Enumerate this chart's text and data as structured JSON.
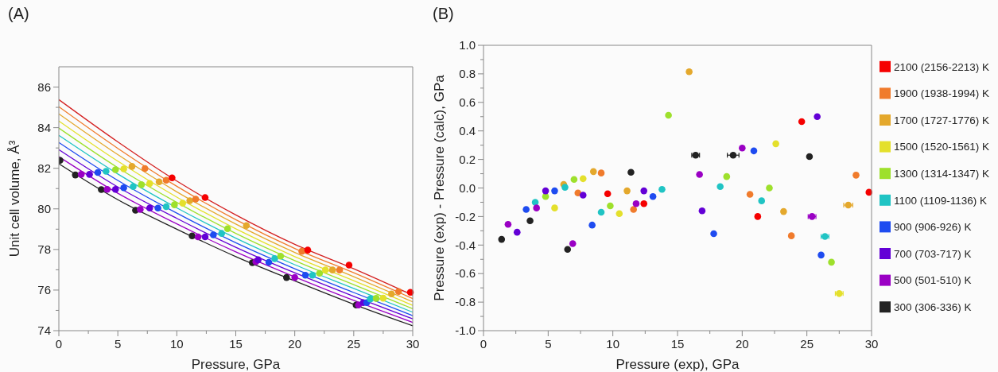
{
  "chart_data": [
    {
      "type": "scatter",
      "title": "(A)",
      "xlabel": "Pressure, GPa",
      "ylabel": "Unit cell volume, Å³",
      "marker": "circle",
      "xlim": [
        0,
        30
      ],
      "ylim": [
        74,
        87
      ],
      "xticks": [
        0,
        {
          "value": 2.5,
          "label": null
        },
        5,
        {
          "value": 7.5,
          "label": null
        },
        10,
        {
          "value": 12.5,
          "label": null
        },
        15,
        {
          "value": 17.5,
          "label": null
        },
        20,
        {
          "value": 22.5,
          "label": null
        },
        25,
        {
          "value": 27.5,
          "label": null
        },
        30
      ],
      "yticks": [
        74,
        {
          "value": 75,
          "label": null
        },
        76,
        {
          "value": 77,
          "label": null
        },
        78,
        {
          "value": 79,
          "label": null
        },
        80,
        {
          "value": 81,
          "label": null
        },
        82,
        {
          "value": 83,
          "label": null
        },
        84,
        {
          "value": 85,
          "label": null
        },
        86
      ],
      "series": [
        {
          "type": "line",
          "marker": "none",
          "color": "#222222",
          "x": [
            0,
            5,
            10,
            15,
            20,
            25,
            30
          ],
          "values": [
            82.22,
            80.45,
            79.0,
            77.65,
            76.45,
            75.3,
            74.24
          ]
        },
        {
          "type": "line",
          "marker": "none",
          "color": "#9a00c4",
          "x": [
            0,
            5,
            10,
            15,
            20,
            25,
            30
          ],
          "values": [
            82.57,
            80.77,
            79.26,
            77.88,
            76.65,
            75.49,
            74.41
          ]
        },
        {
          "type": "line",
          "marker": "none",
          "color": "#6300d6",
          "x": [
            0,
            5,
            10,
            15,
            20,
            25,
            30
          ],
          "values": [
            82.92,
            81.08,
            79.53,
            78.11,
            76.85,
            75.69,
            74.58
          ]
        },
        {
          "type": "line",
          "marker": "none",
          "color": "#1e4bf0",
          "x": [
            0,
            5,
            10,
            15,
            20,
            25,
            30
          ],
          "values": [
            83.27,
            81.4,
            79.79,
            78.33,
            77.05,
            75.88,
            74.74
          ]
        },
        {
          "type": "line",
          "marker": "none",
          "color": "#20c4c4",
          "x": [
            0,
            5,
            10,
            15,
            20,
            25,
            30
          ],
          "values": [
            83.62,
            81.72,
            80.05,
            78.56,
            77.25,
            76.08,
            74.91
          ]
        },
        {
          "type": "line",
          "marker": "none",
          "color": "#9ee02c",
          "x": [
            0,
            5,
            10,
            15,
            20,
            25,
            30
          ],
          "values": [
            83.98,
            82.03,
            80.32,
            78.79,
            77.45,
            76.27,
            75.08
          ]
        },
        {
          "type": "line",
          "marker": "none",
          "color": "#e4e02c",
          "x": [
            0,
            5,
            10,
            15,
            20,
            25,
            30
          ],
          "values": [
            84.33,
            82.35,
            80.58,
            79.02,
            77.65,
            76.46,
            75.25
          ]
        },
        {
          "type": "line",
          "marker": "none",
          "color": "#e4a82c",
          "x": [
            0,
            5,
            10,
            15,
            20,
            25,
            30
          ],
          "values": [
            84.68,
            82.67,
            80.84,
            79.25,
            77.85,
            76.66,
            75.42
          ]
        },
        {
          "type": "line",
          "marker": "none",
          "color": "#f07b2c",
          "x": [
            0,
            5,
            10,
            15,
            20,
            25,
            30
          ],
          "values": [
            85.03,
            82.98,
            81.11,
            79.47,
            78.05,
            76.85,
            75.58
          ]
        },
        {
          "type": "line",
          "marker": "none",
          "color": "#d42020",
          "x": [
            0,
            5,
            10,
            15,
            20,
            25,
            30
          ],
          "values": [
            85.38,
            83.3,
            81.37,
            79.7,
            78.25,
            77.05,
            75.75
          ]
        },
        {
          "color": "#222222",
          "x": [
            0.1,
            1.4,
            3.6,
            6.5,
            11.3,
            16.4,
            19.3,
            25.2
          ],
          "values": [
            82.39,
            81.67,
            80.95,
            79.93,
            78.67,
            77.35,
            76.62,
            75.26
          ]
        },
        {
          "color": "#9a00c4",
          "x": [
            1.9,
            4.1,
            6.9,
            11.8,
            16.7,
            20.0,
            25.4
          ],
          "values": [
            81.7,
            80.96,
            79.97,
            78.62,
            77.4,
            76.62,
            75.26
          ]
        },
        {
          "color": "#6300d6",
          "x": [
            2.6,
            4.8,
            7.7,
            12.4,
            16.9,
            25.8
          ],
          "values": [
            81.7,
            80.96,
            80.04,
            78.62,
            77.49,
            75.38
          ]
        },
        {
          "color": "#1e4bf0",
          "x": [
            3.3,
            5.5,
            8.4,
            13.1,
            17.8,
            20.9,
            26.1
          ],
          "values": [
            81.79,
            81.04,
            80.04,
            78.72,
            77.37,
            76.73,
            75.38
          ]
        },
        {
          "color": "#20c4c4",
          "x": [
            4.0,
            6.3,
            9.1,
            13.8,
            18.3,
            21.5,
            26.4
          ],
          "values": [
            81.85,
            81.1,
            80.11,
            78.79,
            77.55,
            76.73,
            75.56
          ]
        },
        {
          "color": "#9ee02c",
          "x": [
            4.8,
            7.0,
            9.8,
            14.3,
            18.8,
            22.1,
            26.9
          ],
          "values": [
            81.93,
            81.19,
            80.2,
            79.02,
            77.67,
            76.83,
            75.59
          ]
        },
        {
          "color": "#e4e02c",
          "x": [
            5.5,
            7.7,
            10.5,
            22.6,
            27.5
          ],
          "values": [
            81.97,
            81.25,
            80.28,
            76.99,
            75.6
          ]
        },
        {
          "color": "#e4a82c",
          "x": [
            6.2,
            8.5,
            11.1,
            15.9,
            23.2,
            28.2
          ],
          "values": [
            82.09,
            81.33,
            80.4,
            79.18,
            76.99,
            75.81
          ]
        },
        {
          "color": "#f07b2c",
          "x": [
            7.3,
            9.1,
            11.6,
            20.6,
            23.8,
            28.8
          ],
          "values": [
            81.99,
            81.41,
            80.48,
            77.91,
            76.99,
            75.93
          ]
        },
        {
          "color": "#f50000",
          "x": [
            9.6,
            12.4,
            21.1,
            24.6,
            29.8
          ],
          "values": [
            81.53,
            80.56,
            77.97,
            77.23,
            75.89
          ]
        }
      ]
    },
    {
      "type": "scatter",
      "title": "(B)",
      "xlabel": "Pressure (exp), GPa",
      "ylabel": "Pressure (exp) - Pressure (calc), GPa",
      "marker": "circle",
      "legend": "right",
      "xlim": [
        0,
        30
      ],
      "ylim": [
        -1,
        1
      ],
      "xticks": [
        0,
        {
          "value": 2.5,
          "label": null
        },
        5,
        {
          "value": 7.5,
          "label": null
        },
        10,
        {
          "value": 12.5,
          "label": null
        },
        15,
        {
          "value": 17.5,
          "label": null
        },
        20,
        {
          "value": 22.5,
          "label": null
        },
        25,
        {
          "value": 27.5,
          "label": null
        },
        30
      ],
      "yticks": [
        {
          "value": -1,
          "label": "-1.0"
        },
        {
          "value": -0.9,
          "label": null
        },
        {
          "value": -0.8,
          "label": "-0.8"
        },
        {
          "value": -0.7,
          "label": null
        },
        {
          "value": -0.6,
          "label": "-0.6"
        },
        {
          "value": -0.5,
          "label": null
        },
        {
          "value": -0.4,
          "label": "-0.4"
        },
        {
          "value": -0.3,
          "label": null
        },
        {
          "value": -0.2,
          "label": "-0.2"
        },
        {
          "value": -0.1,
          "label": null
        },
        {
          "value": 0,
          "label": "0.0"
        },
        {
          "value": 0.1,
          "label": null
        },
        {
          "value": 0.2,
          "label": "0.2"
        },
        {
          "value": 0.3,
          "label": null
        },
        {
          "value": 0.4,
          "label": "0.4"
        },
        {
          "value": 0.5,
          "label": null
        },
        {
          "value": 0.6,
          "label": "0.6"
        },
        {
          "value": 0.7,
          "label": null
        },
        {
          "value": 0.8,
          "label": "0.8"
        },
        {
          "value": 0.9,
          "label": null
        },
        {
          "value": 1,
          "label": "1.0"
        }
      ],
      "series": [
        {
          "name": "2100 (2156-2213) K",
          "color": "#f50000",
          "x": [
            9.6,
            12.4,
            21.2,
            24.6,
            29.8
          ],
          "values": [
            -0.04,
            -0.11,
            -0.2,
            0.465,
            -0.03
          ]
        },
        {
          "name": "1900 (1938-1994) K",
          "color": "#f07b2c",
          "x": [
            7.3,
            9.1,
            11.6,
            20.6,
            23.8,
            28.8
          ],
          "values": [
            -0.035,
            0.105,
            -0.15,
            -0.045,
            -0.335,
            0.09
          ]
        },
        {
          "name": "1700 (1727-1776) K",
          "color": "#e4a82c",
          "x": [
            6.2,
            8.5,
            11.1,
            15.9,
            23.2,
            28.2
          ],
          "values": [
            0.025,
            0.115,
            -0.02,
            0.815,
            -0.165,
            -0.12
          ],
          "xerrors": [
            null,
            null,
            null,
            null,
            null,
            0.35
          ]
        },
        {
          "name": "1500 (1520-1561) K",
          "color": "#e4e02c",
          "x": [
            5.5,
            7.7,
            10.5,
            22.6,
            27.5
          ],
          "values": [
            -0.14,
            0.065,
            -0.18,
            0.31,
            -0.74
          ],
          "xerrors": [
            null,
            null,
            null,
            null,
            0.3
          ]
        },
        {
          "name": "1300 (1314-1347) K",
          "color": "#9ee02c",
          "x": [
            4.8,
            7.0,
            9.8,
            14.3,
            18.8,
            22.1,
            26.9
          ],
          "values": [
            -0.06,
            0.06,
            -0.125,
            0.51,
            0.08,
            0.0,
            -0.52
          ]
        },
        {
          "name": "1100 (1109-1136) K",
          "color": "#20c4c4",
          "x": [
            4.0,
            6.3,
            9.1,
            13.8,
            18.3,
            21.5,
            26.4
          ],
          "values": [
            -0.1,
            0.005,
            -0.17,
            -0.01,
            0.01,
            -0.09,
            -0.34
          ],
          "xerrors": [
            null,
            null,
            null,
            null,
            null,
            null,
            0.3
          ]
        },
        {
          "name": "900 (906-926) K",
          "color": "#1e4bf0",
          "x": [
            3.3,
            5.5,
            8.4,
            13.1,
            17.8,
            20.9,
            26.1
          ],
          "values": [
            -0.15,
            -0.02,
            -0.26,
            -0.06,
            -0.32,
            0.26,
            -0.47
          ]
        },
        {
          "name": "700 (703-717) K",
          "color": "#6300d6",
          "x": [
            2.6,
            4.8,
            7.7,
            12.4,
            16.9,
            25.8
          ],
          "values": [
            -0.31,
            -0.02,
            -0.05,
            -0.02,
            -0.16,
            0.5
          ]
        },
        {
          "name": "500 (501-510) K",
          "color": "#9a00c4",
          "x": [
            1.9,
            4.1,
            6.9,
            11.8,
            16.7,
            20.0,
            25.4
          ],
          "values": [
            -0.255,
            -0.14,
            -0.39,
            -0.11,
            0.095,
            0.28,
            -0.2
          ],
          "xerrors": [
            null,
            null,
            null,
            null,
            null,
            null,
            0.3
          ]
        },
        {
          "name": "300 (306-336) K",
          "color": "#222222",
          "x": [
            1.4,
            3.6,
            6.5,
            11.4,
            16.4,
            19.3,
            25.2
          ],
          "values": [
            -0.36,
            -0.23,
            -0.43,
            0.11,
            0.23,
            0.23,
            0.22
          ],
          "xerrors": [
            null,
            null,
            null,
            null,
            0.3,
            0.45,
            null
          ]
        }
      ]
    }
  ]
}
